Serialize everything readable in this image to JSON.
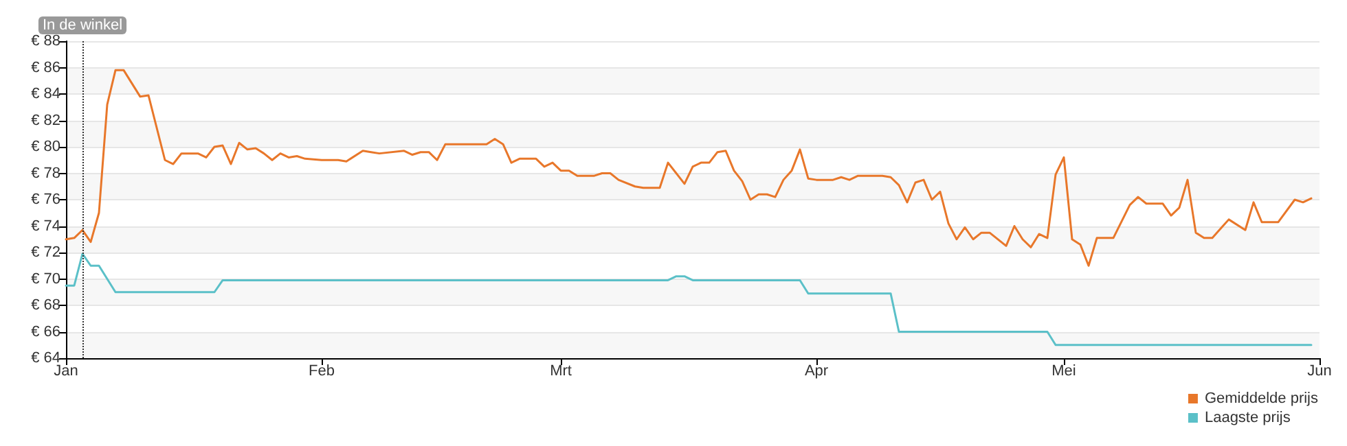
{
  "chart_data": {
    "type": "line",
    "xlim": [
      "--01-01",
      "--06-01"
    ],
    "xticks": [
      {
        "value": "--01-01",
        "label": "Jan"
      },
      {
        "value": "--02-01",
        "label": "Feb"
      },
      {
        "value": "--03-01",
        "label": "Mrt"
      },
      {
        "value": "--04-01",
        "label": "Apr"
      },
      {
        "value": "--05-01",
        "label": "Mei"
      },
      {
        "value": "--06-01",
        "label": "Jun"
      }
    ],
    "ylim": [
      64,
      88
    ],
    "yticks": [
      {
        "value": 64,
        "label": "€ 64"
      },
      {
        "value": 66,
        "label": "€ 66"
      },
      {
        "value": 68,
        "label": "€ 68"
      },
      {
        "value": 70,
        "label": "€ 70"
      },
      {
        "value": 72,
        "label": "€ 72"
      },
      {
        "value": 74,
        "label": "€ 74"
      },
      {
        "value": 76,
        "label": "€ 76"
      },
      {
        "value": 78,
        "label": "€ 78"
      },
      {
        "value": 80,
        "label": "€ 80"
      },
      {
        "value": 82,
        "label": "€ 82"
      },
      {
        "value": 84,
        "label": "€ 84"
      },
      {
        "value": 86,
        "label": "€ 86"
      },
      {
        "value": 88,
        "label": "€ 88"
      }
    ],
    "grid": "y",
    "legend": "bottom right",
    "marker": "none",
    "line_style": "solid",
    "ref_lines": [
      {
        "axis": "x",
        "value": "--01-03",
        "label": "In de winkel",
        "line_style": "dotted",
        "color": "#333333"
      }
    ],
    "series": [
      {
        "name": "Gemiddelde prijs",
        "color": "#e8772a",
        "x": [
          "--01-01",
          "--01-02",
          "--01-03",
          "--01-04",
          "--01-05",
          "--01-06",
          "--01-07",
          "--01-08",
          "--01-10",
          "--01-11",
          "--01-13",
          "--01-14",
          "--01-15",
          "--01-17",
          "--01-18",
          "--01-19",
          "--01-20",
          "--01-21",
          "--01-22",
          "--01-23",
          "--01-24",
          "--01-25",
          "--01-26",
          "--01-27",
          "--01-28",
          "--01-29",
          "--01-30",
          "--02-01",
          "--02-03",
          "--02-04",
          "--02-06",
          "--02-07",
          "--02-08",
          "--02-11",
          "--02-12",
          "--02-13",
          "--02-14",
          "--02-15",
          "--02-16",
          "--02-21",
          "--02-22",
          "--02-23",
          "--02-24",
          "--02-25",
          "--02-27",
          "--02-28",
          "--02-29",
          "--03-01",
          "--03-02",
          "--03-03",
          "--03-05",
          "--03-06",
          "--03-07",
          "--03-08",
          "--03-10",
          "--03-11",
          "--03-13",
          "--03-14",
          "--03-15",
          "--03-16",
          "--03-17",
          "--03-18",
          "--03-19",
          "--03-20",
          "--03-21",
          "--03-22",
          "--03-23",
          "--03-24",
          "--03-25",
          "--03-26",
          "--03-27",
          "--03-28",
          "--03-29",
          "--03-30",
          "--03-31",
          "--04-01",
          "--04-03",
          "--04-04",
          "--04-05",
          "--04-06",
          "--04-09",
          "--04-10",
          "--04-11",
          "--04-12",
          "--04-13",
          "--04-14",
          "--04-15",
          "--04-16",
          "--04-17",
          "--04-18",
          "--04-19",
          "--04-20",
          "--04-21",
          "--04-22",
          "--04-24",
          "--04-25",
          "--04-26",
          "--04-27",
          "--04-28",
          "--04-29",
          "--04-30",
          "--05-01",
          "--05-02",
          "--05-03",
          "--05-04",
          "--05-05",
          "--05-07",
          "--05-09",
          "--05-10",
          "--05-11",
          "--05-13",
          "--05-14",
          "--05-15",
          "--05-16",
          "--05-17",
          "--05-18",
          "--05-19",
          "--05-21",
          "--05-23",
          "--05-24",
          "--05-25",
          "--05-27",
          "--05-29",
          "--05-30",
          "--05-31"
        ],
        "values": [
          73.0,
          73.1,
          73.7,
          72.8,
          75.0,
          83.2,
          85.8,
          85.8,
          83.8,
          83.9,
          79.0,
          78.7,
          79.5,
          79.5,
          79.2,
          80.0,
          80.1,
          78.7,
          80.3,
          79.8,
          79.9,
          79.5,
          79.0,
          79.5,
          79.2,
          79.3,
          79.1,
          79.0,
          79.0,
          78.9,
          79.7,
          79.6,
          79.5,
          79.7,
          79.4,
          79.6,
          79.6,
          79.0,
          80.2,
          80.2,
          80.6,
          80.2,
          78.8,
          79.1,
          79.1,
          78.5,
          78.8,
          78.2,
          78.2,
          77.8,
          77.8,
          78.0,
          78.0,
          77.5,
          77.0,
          76.9,
          76.9,
          78.8,
          78.0,
          77.2,
          78.5,
          78.8,
          78.8,
          79.6,
          79.7,
          78.2,
          77.4,
          76.0,
          76.4,
          76.4,
          76.2,
          77.5,
          78.2,
          79.8,
          77.6,
          77.5,
          77.5,
          77.7,
          77.5,
          77.8,
          77.8,
          77.7,
          77.1,
          75.8,
          77.3,
          77.5,
          76.0,
          76.6,
          74.2,
          73.0,
          73.9,
          73.0,
          73.5,
          73.5,
          72.5,
          74.0,
          73.0,
          72.4,
          73.4,
          73.1,
          77.9,
          79.2,
          73.0,
          72.6,
          71.0,
          73.1,
          73.1,
          75.6,
          76.2,
          75.7,
          75.7,
          74.8,
          75.4,
          77.5,
          73.5,
          73.1,
          73.1,
          74.5,
          73.7,
          75.8,
          74.3,
          74.3,
          76.0,
          75.8,
          76.1
        ]
      },
      {
        "name": "Laagste prijs",
        "color": "#5bc0c8",
        "x": [
          "--01-01",
          "--01-02",
          "--01-03",
          "--01-04",
          "--01-05",
          "--01-07",
          "--01-19",
          "--01-20",
          "--03-14",
          "--03-15",
          "--03-16",
          "--03-17",
          "--03-30",
          "--03-31",
          "--04-10",
          "--04-11",
          "--04-29",
          "--04-30",
          "--05-31"
        ],
        "values": [
          69.5,
          69.5,
          71.9,
          71.0,
          71.0,
          69.0,
          69.0,
          69.9,
          69.9,
          70.2,
          70.2,
          69.9,
          69.9,
          68.9,
          68.9,
          66.0,
          66.0,
          65.0,
          65.0
        ]
      }
    ]
  }
}
